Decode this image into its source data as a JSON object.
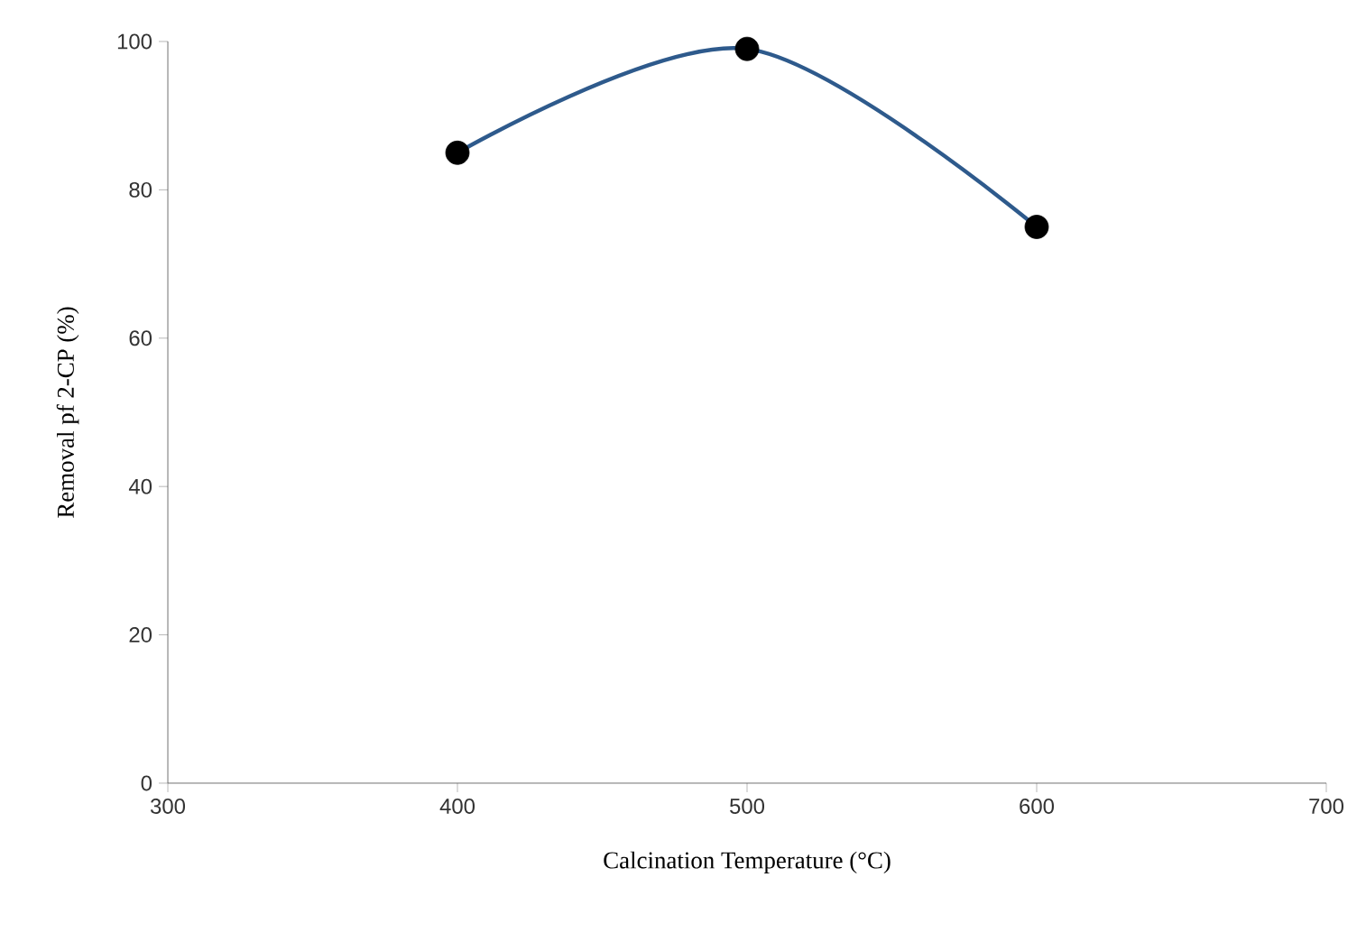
{
  "chart_data": {
    "type": "line",
    "xlabel": "Calcination Temperature (°C)",
    "ylabel": "Removal pf 2-CP (%)",
    "x": [
      400,
      500,
      600
    ],
    "series": [
      {
        "color": "#2e5a8c",
        "values": [
          85,
          99,
          75
        ]
      }
    ],
    "xlim": [
      300,
      700
    ],
    "xticks": [
      300,
      400,
      500,
      600,
      700
    ],
    "ylim": [
      0,
      100
    ],
    "yticks": [
      0,
      20,
      40,
      60,
      80,
      100
    ],
    "marker": "circle",
    "grid": false
  }
}
